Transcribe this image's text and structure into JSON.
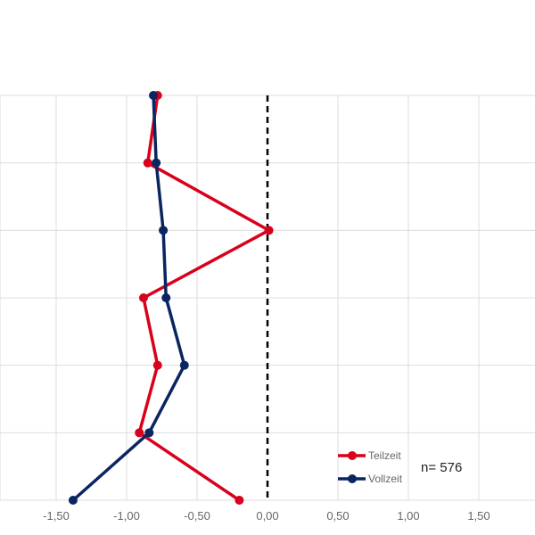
{
  "chart_data": {
    "type": "line",
    "orientation": "vertical-profile",
    "title": "",
    "xlabel": "",
    "ylabel": "",
    "x_ticks": [
      "-1,50",
      "-1,00",
      "-0,50",
      "0,00",
      "0,50",
      "1,00",
      "1,50"
    ],
    "x_tick_values": [
      -1.5,
      -1.0,
      -0.5,
      0.0,
      0.5,
      1.0,
      1.5
    ],
    "xlim": [
      -1.9,
      1.9
    ],
    "levels": 7,
    "reference_line_x": 0.0,
    "grid": true,
    "legend_position": "bottom-right",
    "series": [
      {
        "name": "Teilzeit",
        "color": "#d9001b",
        "values": [
          -0.78,
          -0.85,
          0.01,
          -0.88,
          -0.78,
          -0.91,
          -0.2
        ]
      },
      {
        "name": "Vollzeit",
        "color": "#0b2560",
        "values": [
          -0.81,
          -0.79,
          -0.74,
          -0.72,
          -0.59,
          -0.84,
          -1.38
        ]
      }
    ],
    "annotation": "n= 576"
  }
}
